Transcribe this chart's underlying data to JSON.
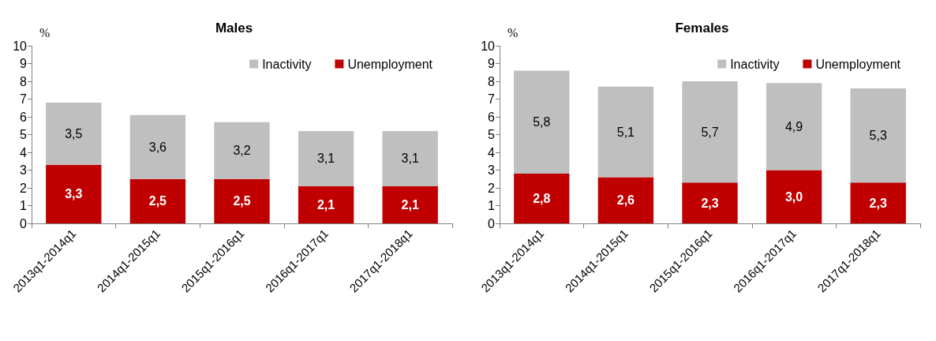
{
  "chart_data": [
    {
      "type": "bar",
      "title": "Males",
      "ylabel": "%",
      "stacked": true,
      "legend": "top right",
      "grid": false,
      "categories": [
        "2013q1-2014q1",
        "2014q1-2015q1",
        "2015q1-2016q1",
        "2016q1-2017q1",
        "2017q1-2018q1"
      ],
      "ylim": [
        0,
        10
      ],
      "yticks": [
        0,
        1,
        2,
        3,
        4,
        5,
        6,
        7,
        8,
        9,
        10
      ],
      "series": [
        {
          "name": "Unemployment",
          "color": "#c00000",
          "values": [
            3.3,
            2.5,
            2.5,
            2.1,
            2.1
          ],
          "value_labels": [
            "3,3",
            "2,5",
            "2,5",
            "2,1",
            "2,1"
          ]
        },
        {
          "name": "Inactivity",
          "color": "#bfbfbf",
          "values": [
            3.5,
            3.6,
            3.2,
            3.1,
            3.1
          ],
          "value_labels": [
            "3,5",
            "3,6",
            "3,2",
            "3,1",
            "3,1"
          ]
        }
      ]
    },
    {
      "type": "bar",
      "title": "Females",
      "ylabel": "%",
      "stacked": true,
      "legend": "top right",
      "grid": false,
      "categories": [
        "2013q1-2014q1",
        "2014q1-2015q1",
        "2015q1-2016q1",
        "2016q1-2017q1",
        "2017q1-2018q1"
      ],
      "ylim": [
        0,
        10
      ],
      "yticks": [
        0,
        1,
        2,
        3,
        4,
        5,
        6,
        7,
        8,
        9,
        10
      ],
      "series": [
        {
          "name": "Unemployment",
          "color": "#c00000",
          "values": [
            2.8,
            2.6,
            2.3,
            3.0,
            2.3
          ],
          "value_labels": [
            "2,8",
            "2,6",
            "2,3",
            "3,0",
            "2,3"
          ]
        },
        {
          "name": "Inactivity",
          "color": "#bfbfbf",
          "values": [
            5.8,
            5.1,
            5.7,
            4.9,
            5.3
          ],
          "value_labels": [
            "5,8",
            "5,1",
            "5,7",
            "4,9",
            "5,3"
          ]
        }
      ]
    }
  ]
}
